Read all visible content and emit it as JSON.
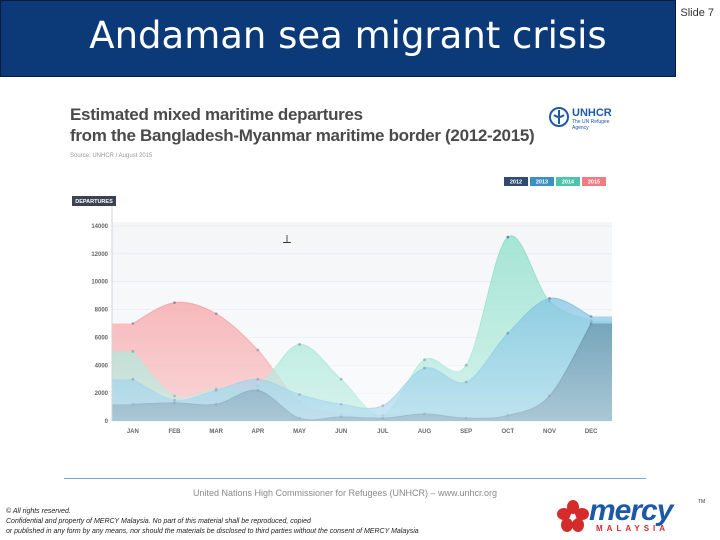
{
  "slide": {
    "title": "Andaman sea migrant crisis",
    "number": "Slide 7"
  },
  "chart_data": {
    "type": "area",
    "title_line1": "Estimated mixed maritime departures",
    "title_line2": "from the Bangladesh-Myanmar maritime border (2012-2015)",
    "source": "Source: UNHCR / August 2015",
    "ylabel": "DEPARTURES",
    "ylim": [
      0,
      14000
    ],
    "yticks": [
      "14000",
      "12000",
      "10000",
      "8000",
      "6000",
      "4000",
      "2000",
      "0"
    ],
    "categories": [
      "JAN",
      "FEB",
      "MAR",
      "APR",
      "MAY",
      "JUN",
      "JUL",
      "AUG",
      "SEP",
      "OCT",
      "NOV",
      "DEC"
    ],
    "series": [
      {
        "name": "2015",
        "color": "#f4878a",
        "values": [
          7000,
          8500,
          7700,
          5100,
          1400,
          500,
          400,
          500,
          300,
          300,
          300,
          300
        ]
      },
      {
        "name": "2014",
        "color": "#84dcc7",
        "values": [
          5000,
          1800,
          2300,
          2500,
          5500,
          3000,
          400,
          4400,
          4000,
          13200,
          8600,
          7200
        ]
      },
      {
        "name": "2013",
        "color": "#5fb4dc",
        "values": [
          3000,
          1500,
          2200,
          3000,
          1900,
          1200,
          1100,
          3800,
          2800,
          6300,
          8800,
          7500
        ]
      },
      {
        "name": "2012",
        "color": "#2f6c8c",
        "values": [
          1200,
          1300,
          1200,
          2200,
          200,
          300,
          200,
          500,
          200,
          400,
          1800,
          7000
        ]
      }
    ],
    "legend": [
      "2012",
      "2013",
      "2014",
      "2015"
    ],
    "legend_colors": [
      "#2f4c6e",
      "#3b8fc4",
      "#4bc4a8",
      "#ef7b83"
    ],
    "legend_position": "top-right",
    "annotation": "⟂"
  },
  "logo": {
    "unhcr_name": "UNHCR",
    "unhcr_tagline": "The UN Refugee Agency",
    "mercy_word": "mercy",
    "mercy_sub": "MALAYSIA",
    "mercy_tm": "TM"
  },
  "footer": {
    "credit": "United Nations High Commissioner for Refugees (UNHCR) – www.unhcr.org",
    "legal_line1": "© All rights reserved.",
    "legal_line2": "Confidential and property of MERCY Malaysia. No part of this material shall be reproduced, copied",
    "legal_line3": "or published in any form by any means, nor should the materials be disclosed to third parties without the consent of MERCY Malaysia"
  },
  "colors": {
    "title_bar": "#0c3a78",
    "footer_rule": "#7da7d6"
  }
}
